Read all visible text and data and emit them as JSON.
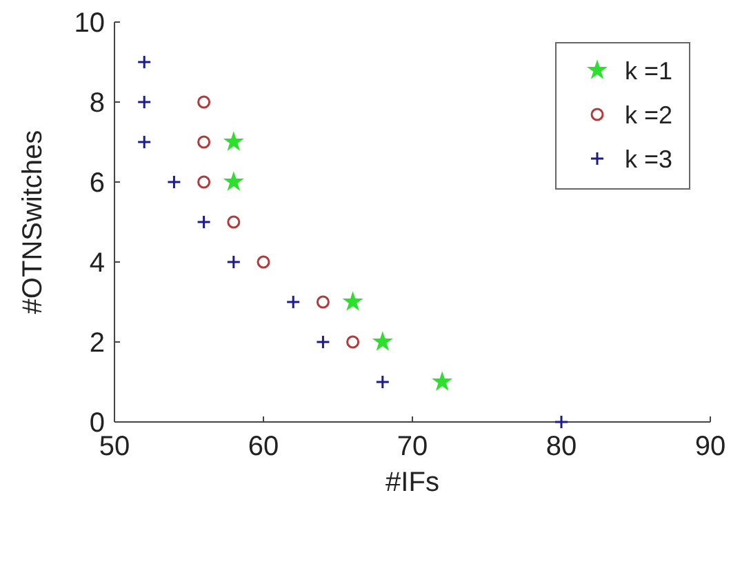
{
  "chart_data": {
    "type": "scatter",
    "xlabel": "#IFs",
    "ylabel": "#OTNSwitches",
    "xlim": [
      50,
      90
    ],
    "xticks": [
      50,
      60,
      70,
      80,
      90
    ],
    "ylim": [
      0,
      10
    ],
    "yticks": [
      0,
      2,
      4,
      6,
      8,
      10
    ],
    "grid": false,
    "legend": "top right",
    "series": [
      {
        "name": "k =1",
        "color": "#2ee02e",
        "marker": "star",
        "x": [
          58,
          58,
          66,
          68,
          72
        ],
        "values": [
          7,
          6,
          3,
          2,
          1
        ]
      },
      {
        "name": "k =2",
        "color": "#b33a3a",
        "marker": "circle",
        "x": [
          56,
          56,
          56,
          58,
          60,
          64,
          66
        ],
        "values": [
          8,
          7,
          6,
          5,
          4,
          3,
          2
        ]
      },
      {
        "name": "k =3",
        "color": "#1c1c8a",
        "marker": "cross",
        "x": [
          52,
          52,
          52,
          54,
          56,
          58,
          62,
          64,
          68,
          80
        ],
        "values": [
          9,
          8,
          7,
          6,
          5,
          4,
          3,
          2,
          1,
          0
        ]
      }
    ]
  }
}
